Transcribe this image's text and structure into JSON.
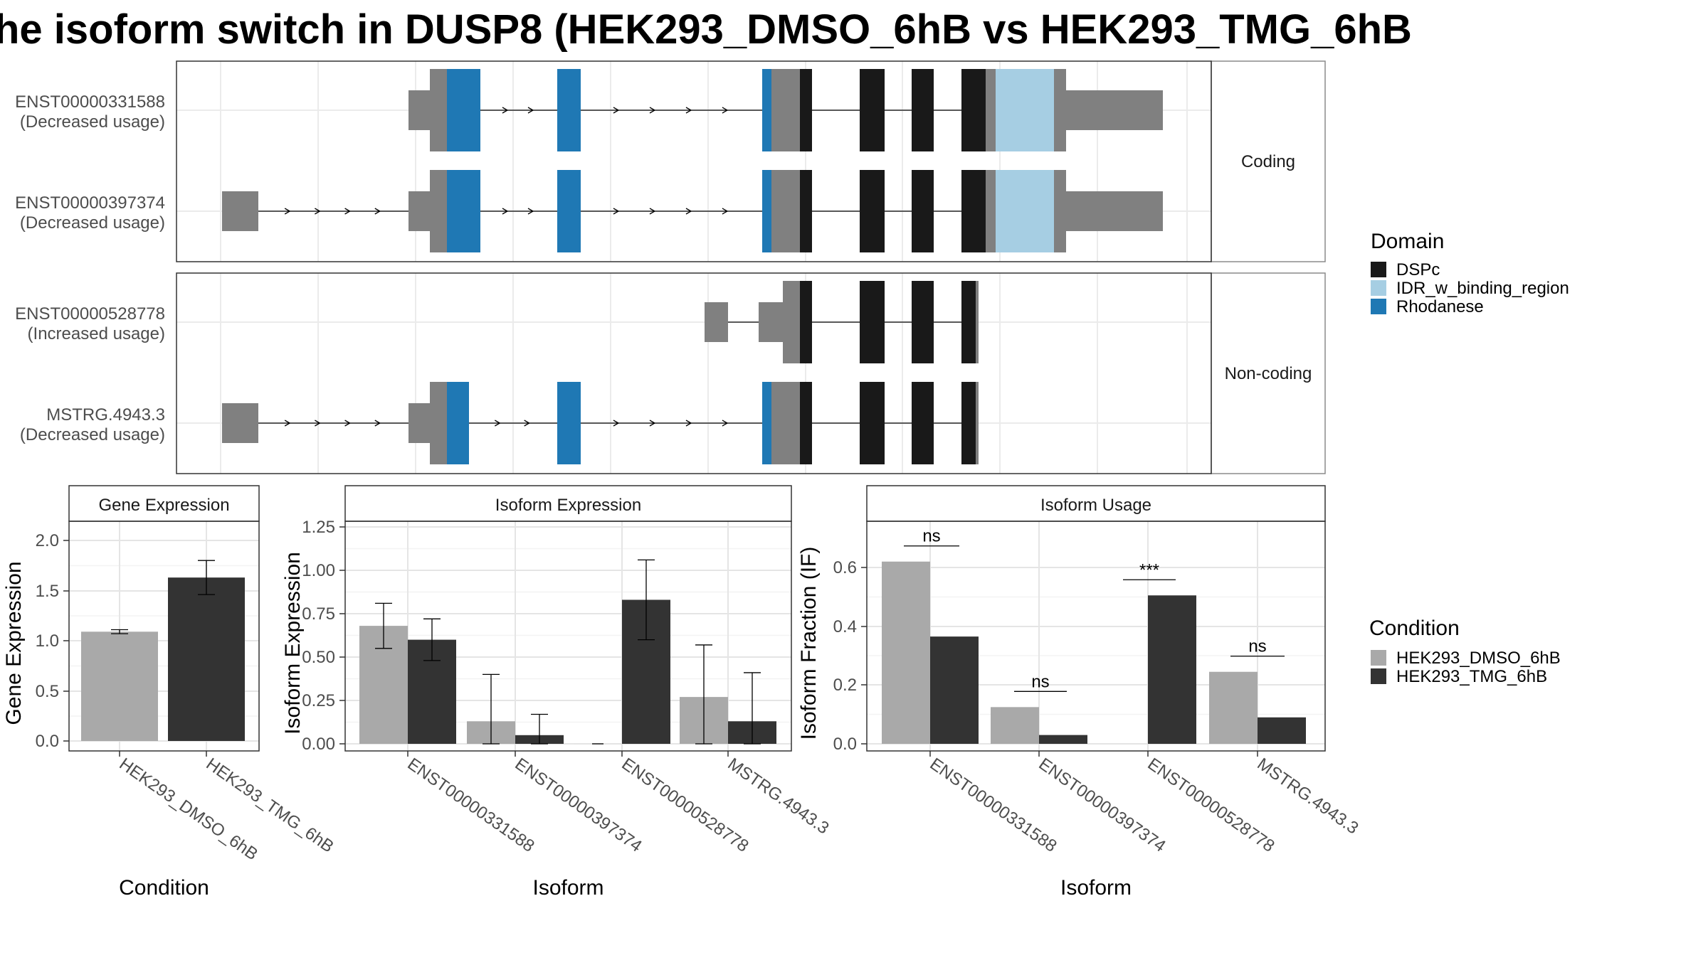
{
  "title": "he isoform switch in DUSP8 (HEK293_DMSO_6hB vs HEK293_TMG_6hB",
  "colors": {
    "DSPc": "#191919",
    "IDR_w_binding_region": "#a6cee3",
    "Rhodanese": "#1f78b4",
    "utr": "#808080",
    "HEK293_DMSO_6hB": "#a9a9a9",
    "HEK293_TMG_6hB": "#333333"
  },
  "structure": {
    "groups": [
      {
        "label": "Coding",
        "transcripts": [
          {
            "id": "ENST00000331588",
            "usage": "(Decreased usage)"
          },
          {
            "id": "ENST00000397374",
            "usage": "(Decreased usage)"
          }
        ]
      },
      {
        "label": "Non-coding",
        "transcripts": [
          {
            "id": "ENST00000528778",
            "usage": "(Increased usage)"
          },
          {
            "id": "MSTRG.4943.3",
            "usage": "(Decreased usage)"
          }
        ]
      }
    ],
    "domain_legend": {
      "title": "Domain",
      "items": [
        "DSPc",
        "IDR_w_binding_region",
        "Rhodanese"
      ]
    }
  },
  "chart_data": [
    {
      "type": "bar",
      "title": "Gene Expression",
      "xlabel": "Condition",
      "ylabel": "Gene Expression",
      "categories": [
        "HEK293_DMSO_6hB",
        "HEK293_TMG_6hB"
      ],
      "values": [
        1.09,
        1.63
      ],
      "errors": [
        [
          1.07,
          1.11
        ],
        [
          1.46,
          1.8
        ]
      ],
      "ylim": [
        0,
        2.2
      ],
      "yticks": [
        "0.0",
        "0.5",
        "1.0",
        "1.5",
        "2.0"
      ]
    },
    {
      "type": "bar",
      "title": "Isoform Expression",
      "xlabel": "Isoform",
      "ylabel": "Isoform Expression",
      "categories": [
        "ENST00000331588",
        "ENST00000397374",
        "ENST00000528778",
        "MSTRG.4943.3"
      ],
      "series": [
        {
          "name": "HEK293_DMSO_6hB",
          "values": [
            0.68,
            0.13,
            0.0,
            0.27
          ],
          "errors": [
            [
              0.55,
              0.81
            ],
            [
              0.0,
              0.4
            ],
            [
              0.0,
              0.0
            ],
            [
              0.0,
              0.57
            ]
          ]
        },
        {
          "name": "HEK293_TMG_6hB",
          "values": [
            0.6,
            0.05,
            0.83,
            0.13
          ],
          "errors": [
            [
              0.48,
              0.72
            ],
            [
              0.0,
              0.17
            ],
            [
              0.6,
              1.06
            ],
            [
              0.0,
              0.41
            ]
          ]
        }
      ],
      "ylim": [
        0,
        1.28
      ],
      "yticks": [
        "0.00",
        "0.25",
        "0.50",
        "0.75",
        "1.00",
        "1.25"
      ]
    },
    {
      "type": "bar",
      "title": "Isoform Usage",
      "xlabel": "Isoform",
      "ylabel": "Isoform Fraction (IF)",
      "categories": [
        "ENST00000331588",
        "ENST00000397374",
        "ENST00000528778",
        "MSTRG.4943.3"
      ],
      "series": [
        {
          "name": "HEK293_DMSO_6hB",
          "values": [
            0.62,
            0.125,
            0.0,
            0.245
          ]
        },
        {
          "name": "HEK293_TMG_6hB",
          "values": [
            0.365,
            0.03,
            0.505,
            0.09
          ]
        }
      ],
      "significance": [
        "ns",
        "ns",
        "***",
        "ns"
      ],
      "ylim": [
        0,
        0.76
      ],
      "yticks": [
        "0.0",
        "0.2",
        "0.4",
        "0.6"
      ]
    }
  ],
  "condition_legend": {
    "title": "Condition",
    "items": [
      "HEK293_DMSO_6hB",
      "HEK293_TMG_6hB"
    ]
  }
}
